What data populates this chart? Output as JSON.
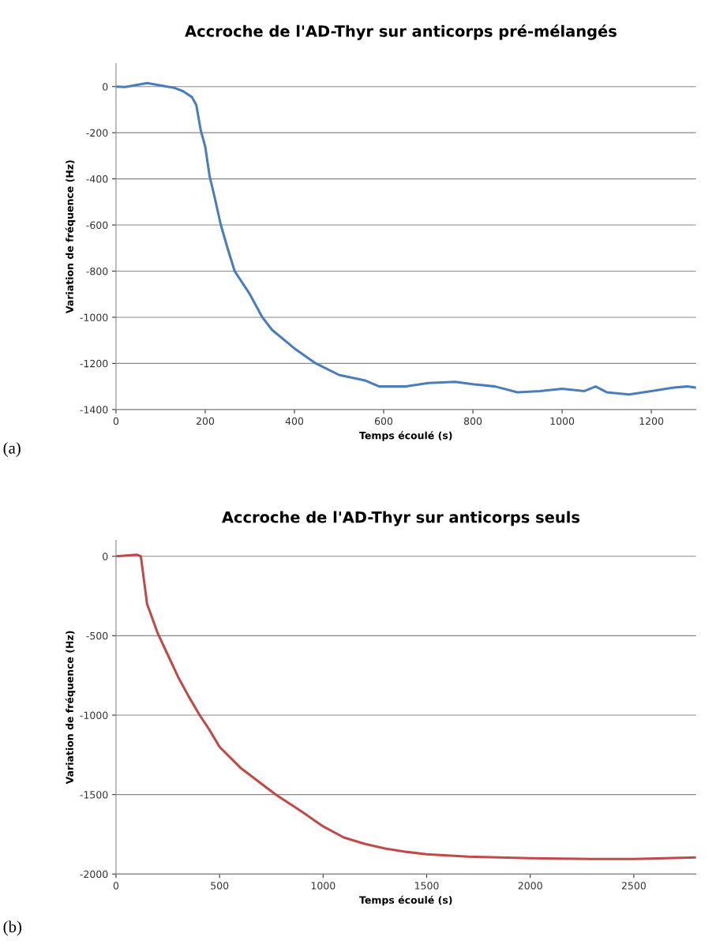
{
  "chart_data": [
    {
      "type": "line",
      "title": "Accroche de l'AD-Thyr sur anticorps pré-mélangés",
      "xlabel": "Temps écoulé (s)",
      "ylabel": "Variation de fréquence (Hz)",
      "annotations": [
        "(a)"
      ],
      "xlim": [
        0,
        1300
      ],
      "xticks": [
        0,
        200,
        400,
        600,
        800,
        1000,
        1200
      ],
      "ylim": [
        -1400,
        100
      ],
      "yticks": [
        -1400,
        -1200,
        -1000,
        -800,
        -600,
        -400,
        -200,
        0
      ],
      "grid": "y",
      "legend": false,
      "marker": "none",
      "line_style": "solid",
      "series": [
        {
          "color": "#4a7ebb",
          "x": [
            0,
            20,
            50,
            70,
            100,
            130,
            150,
            170,
            180,
            190,
            200,
            210,
            220,
            235,
            250,
            266,
            300,
            328,
            350,
            400,
            448,
            500,
            560,
            590,
            650,
            700,
            760,
            800,
            850,
            900,
            950,
            1000,
            1050,
            1075,
            1100,
            1150,
            1200,
            1250,
            1280,
            1300
          ],
          "values": [
            0,
            -2,
            8,
            15,
            5,
            -5,
            -20,
            -45,
            -80,
            -190,
            -260,
            -390,
            -470,
            -600,
            -700,
            -800,
            -900,
            -1000,
            -1055,
            -1135,
            -1200,
            -1250,
            -1275,
            -1300,
            -1300,
            -1285,
            -1280,
            -1290,
            -1300,
            -1325,
            -1320,
            -1310,
            -1320,
            -1300,
            -1325,
            -1335,
            -1320,
            -1305,
            -1300,
            -1305
          ]
        }
      ]
    },
    {
      "type": "line",
      "title": "Accroche de l'AD-Thyr sur anticorps seuls",
      "xlabel": "Temps écoulé (s)",
      "ylabel": "Variation de fréquence (Hz)",
      "annotations": [
        "(b)"
      ],
      "xlim": [
        0,
        2800
      ],
      "xticks": [
        0,
        500,
        1000,
        1500,
        2000,
        2500
      ],
      "ylim": [
        -2000,
        100
      ],
      "yticks": [
        -2000,
        -1500,
        -1000,
        -500,
        0
      ],
      "grid": "y",
      "legend": false,
      "marker": "none",
      "line_style": "solid",
      "series": [
        {
          "color": "#be4b48",
          "x": [
            0,
            50,
            100,
            120,
            130,
            150,
            200,
            250,
            300,
            350,
            404,
            450,
            500,
            600,
            700,
            772,
            900,
            1000,
            1100,
            1200,
            1300,
            1400,
            1500,
            1700,
            2000,
            2300,
            2500,
            2800
          ],
          "values": [
            0,
            5,
            10,
            0,
            -100,
            -300,
            -480,
            -620,
            -760,
            -880,
            -1000,
            -1090,
            -1200,
            -1330,
            -1430,
            -1500,
            -1610,
            -1700,
            -1770,
            -1810,
            -1840,
            -1860,
            -1875,
            -1890,
            -1900,
            -1905,
            -1905,
            -1895
          ]
        }
      ]
    }
  ]
}
